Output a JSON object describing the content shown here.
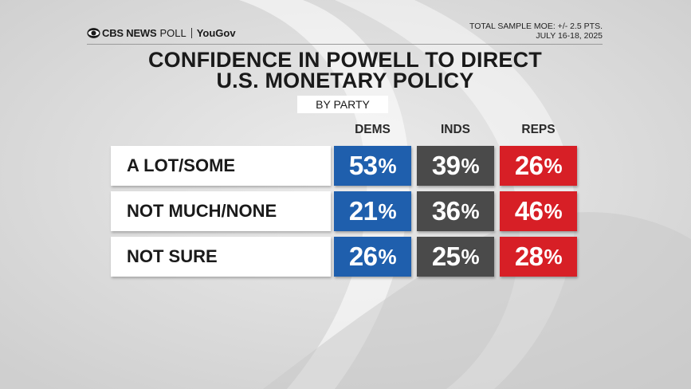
{
  "header": {
    "brand_cbs": "CBS NEWS",
    "brand_poll": "POLL",
    "brand_partner": "YouGov",
    "moe_line1": "TOTAL SAMPLE MOE: +/- 2.5 PTS.",
    "moe_line2": "JULY 16-18, 2025"
  },
  "colors": {
    "dems": "#1f5fad",
    "inds": "#4a4a4a",
    "reps": "#d71f26"
  },
  "chart_data": {
    "type": "table",
    "title_line1": "CONFIDENCE IN POWELL TO DIRECT",
    "title_line2": "U.S. MONETARY POLICY",
    "subtitle": "BY PARTY",
    "columns": [
      "DEMS",
      "INDS",
      "REPS"
    ],
    "rows": [
      {
        "label": "A LOT/SOME",
        "values": [
          53,
          39,
          26
        ]
      },
      {
        "label": "NOT MUCH/NONE",
        "values": [
          21,
          36,
          46
        ]
      },
      {
        "label": "NOT SURE",
        "values": [
          26,
          25,
          28
        ]
      }
    ],
    "unit": "%"
  }
}
